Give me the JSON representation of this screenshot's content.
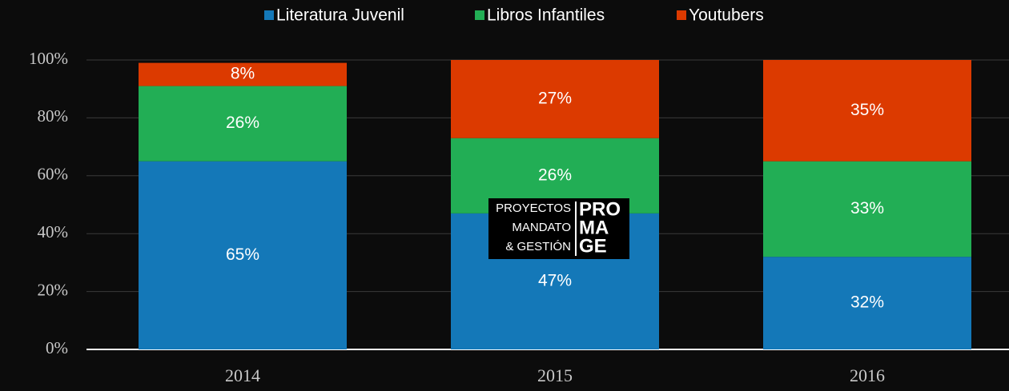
{
  "chart_data": {
    "type": "stacked_bar",
    "categories": [
      "2014",
      "2015",
      "2016"
    ],
    "series": [
      {
        "name": "Literatura Juvenil",
        "color": "#1478b8",
        "values": [
          65,
          47,
          32
        ],
        "value_labels": [
          "65%",
          "47%",
          "32%"
        ]
      },
      {
        "name": "Libros Infantiles",
        "color": "#22ae55",
        "values": [
          26,
          26,
          33
        ],
        "value_labels": [
          "26%",
          "26%",
          "33%"
        ]
      },
      {
        "name": "Youtubers",
        "color": "#dc3a00",
        "values": [
          8,
          27,
          35
        ],
        "value_labels": [
          "8%",
          "27%",
          "35%"
        ]
      }
    ],
    "ylim": [
      0,
      100
    ],
    "yticks": [
      {
        "value": 0,
        "label": "0%"
      },
      {
        "value": 20,
        "label": "20%"
      },
      {
        "value": 40,
        "label": "40%"
      },
      {
        "value": 60,
        "label": "60%"
      },
      {
        "value": 80,
        "label": "80%"
      },
      {
        "value": 100,
        "label": "100%"
      }
    ],
    "grid": true,
    "legend": "top"
  },
  "watermark": {
    "left_lines": [
      "PROYECTOS",
      "MANDATO",
      "& GESTIÓN"
    ],
    "right_lines": [
      "PRO",
      "MA",
      "GE"
    ]
  }
}
